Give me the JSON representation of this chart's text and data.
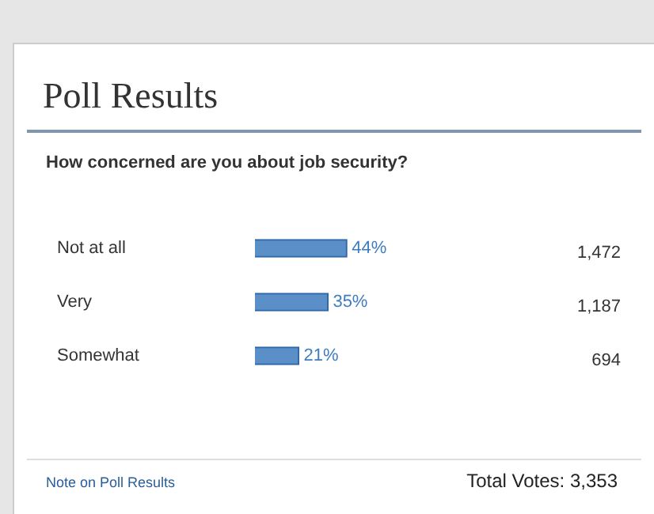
{
  "chart_data": {
    "type": "bar",
    "orientation": "horizontal",
    "title": "Poll Results",
    "subtitle": "How concerned are you about job security?",
    "categories": [
      "Not at all",
      "Very",
      "Somewhat"
    ],
    "values": [
      44,
      35,
      21
    ],
    "value_labels": [
      "44%",
      "35%",
      "21%"
    ],
    "color": "#5a8fc8",
    "tick_labels": "y",
    "annotations": [
      "1,472",
      "1,187",
      "694",
      "Note on Poll Results",
      "Total Votes: 3,353"
    ]
  }
}
